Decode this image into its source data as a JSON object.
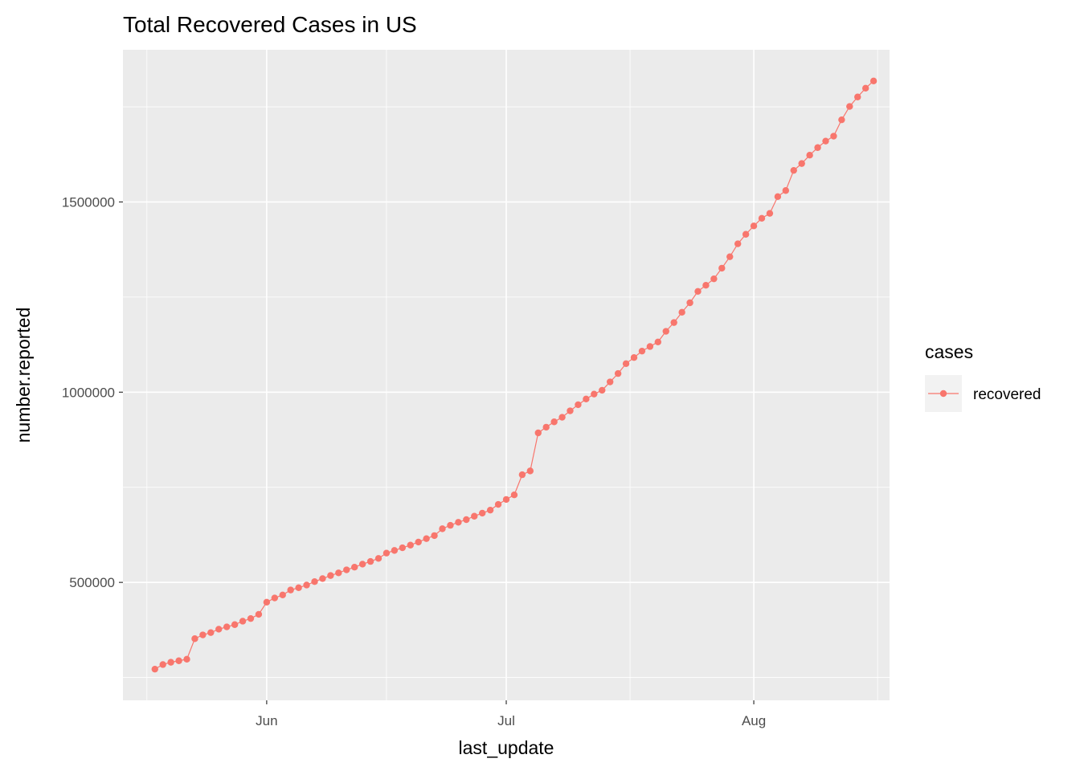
{
  "chart_data": {
    "type": "line",
    "title": "Total Recovered Cases in US",
    "xlabel": "last_update",
    "ylabel": "number.reported",
    "x_ticks": [
      {
        "date": "2020-06-01",
        "label": "Jun"
      },
      {
        "date": "2020-07-01",
        "label": "Jul"
      },
      {
        "date": "2020-08-01",
        "label": "Aug"
      }
    ],
    "y_ticks": [
      {
        "value": 500000,
        "label": "500000"
      },
      {
        "value": 1000000,
        "label": "1000000"
      },
      {
        "value": 1500000,
        "label": "1500000"
      }
    ],
    "xlim": [
      "2020-05-14",
      "2020-08-18"
    ],
    "ylim": [
      190000,
      1900000
    ],
    "grid": true,
    "legend": {
      "title": "cases",
      "position": "right"
    },
    "series": [
      {
        "name": "recovered",
        "color": "#F8766D",
        "x_start": "2020-05-18",
        "x_step_days": 1,
        "values": [
          272000,
          284000,
          290000,
          294000,
          298000,
          352000,
          362000,
          368000,
          377000,
          383000,
          389000,
          398000,
          405000,
          416000,
          448000,
          459000,
          467000,
          480000,
          486000,
          493000,
          502000,
          510000,
          518000,
          525000,
          533000,
          540000,
          548000,
          555000,
          563000,
          577000,
          584000,
          591000,
          598000,
          606000,
          615000,
          623000,
          641000,
          650000,
          658000,
          665000,
          674000,
          682000,
          690000,
          705000,
          718000,
          730000,
          783000,
          793000,
          893000,
          908000,
          922000,
          934000,
          951000,
          967000,
          982000,
          995000,
          1005000,
          1027000,
          1049000,
          1075000,
          1091000,
          1108000,
          1120000,
          1132000,
          1160000,
          1183000,
          1210000,
          1235000,
          1265000,
          1281000,
          1298000,
          1326000,
          1356000,
          1390000,
          1415000,
          1437000,
          1457000,
          1470000,
          1514000,
          1530000,
          1583000,
          1601000,
          1623000,
          1643000,
          1660000,
          1673000,
          1716000,
          1751000,
          1776000,
          1799000,
          1818000
        ]
      }
    ]
  }
}
